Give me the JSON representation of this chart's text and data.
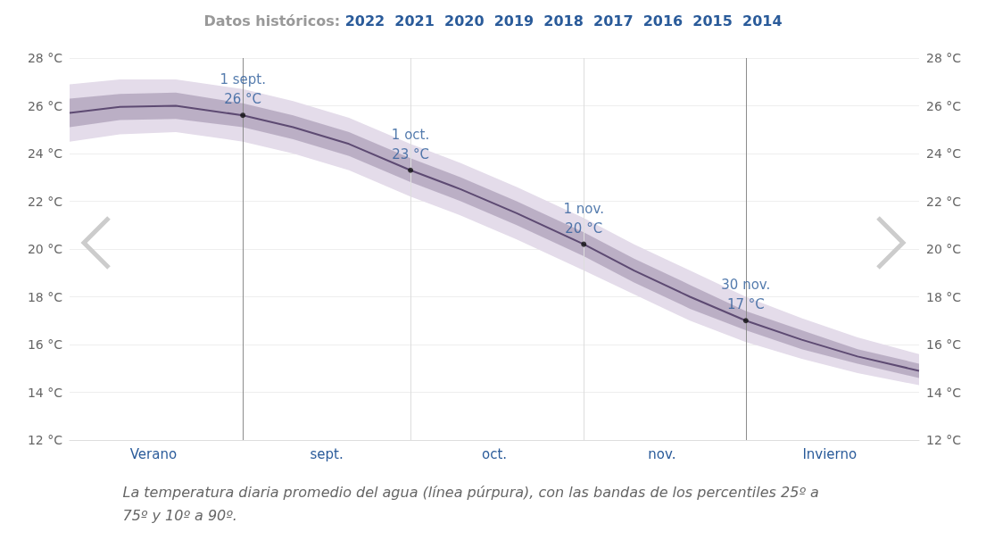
{
  "chart_data": {
    "type": "line",
    "title": "Datos históricos: 2022  2021  2020  2019  2018  2017  2016  2015  2014",
    "x": [
      "--08-01",
      "--08-10",
      "--08-20",
      "--09-01",
      "--09-10",
      "--09-20",
      "--10-01",
      "--10-10",
      "--10-20",
      "--11-01",
      "--11-10",
      "--11-20",
      "--11-30",
      "--12-10",
      "--12-20",
      "--12-31"
    ],
    "series": [
      {
        "color": "#5d4a72",
        "values": [
          25.7,
          25.95,
          26.0,
          25.6,
          25.1,
          24.4,
          23.3,
          22.5,
          21.5,
          20.2,
          19.1,
          18.0,
          17.0,
          16.2,
          15.5,
          14.9
        ],
        "lower": [
          25.1,
          25.4,
          25.45,
          25.1,
          24.6,
          23.9,
          22.8,
          22.0,
          21.0,
          19.7,
          18.6,
          17.5,
          16.6,
          15.8,
          15.2,
          14.6
        ],
        "upper": [
          26.3,
          26.5,
          26.55,
          26.1,
          25.6,
          24.9,
          23.8,
          23.0,
          22.0,
          20.7,
          19.6,
          18.5,
          17.4,
          16.6,
          15.8,
          15.2
        ]
      },
      {
        "color": "#e4dcea",
        "values": [
          null,
          null,
          null,
          null,
          null,
          null,
          null,
          null,
          null,
          null,
          null,
          null,
          null,
          null,
          null,
          null
        ],
        "lower": [
          24.5,
          24.8,
          24.9,
          24.5,
          24.0,
          23.3,
          22.2,
          21.4,
          20.4,
          19.1,
          18.1,
          17.0,
          16.1,
          15.4,
          14.8,
          14.3
        ],
        "upper": [
          26.9,
          27.1,
          27.1,
          26.7,
          26.2,
          25.5,
          24.4,
          23.6,
          22.6,
          21.3,
          20.2,
          19.1,
          18.0,
          17.1,
          16.3,
          15.6
        ]
      }
    ],
    "xlim": [
      "--08-01",
      "--12-31"
    ],
    "xticks": [
      {
        "value": "--08-16",
        "label": "Verano"
      },
      {
        "value": "--09-16",
        "label": "sept."
      },
      {
        "value": "--10-16",
        "label": "oct."
      },
      {
        "value": "--11-15",
        "label": "nov."
      },
      {
        "value": "--12-15",
        "label": "Invierno"
      }
    ],
    "ylim": [
      12,
      28
    ],
    "yticks": [
      {
        "value": 12,
        "label": "12 °C"
      },
      {
        "value": 14,
        "label": "14 °C"
      },
      {
        "value": 16,
        "label": "16 °C"
      },
      {
        "value": 18,
        "label": "18 °C"
      },
      {
        "value": 20,
        "label": "20 °C"
      },
      {
        "value": 22,
        "label": "22 °C"
      },
      {
        "value": 24,
        "label": "24 °C"
      },
      {
        "value": 26,
        "label": "26 °C"
      },
      {
        "value": 28,
        "label": "28 °C"
      }
    ],
    "y2lim": [
      12,
      28
    ],
    "y2ticks": [
      {
        "value": 12,
        "label": "12 °C"
      },
      {
        "value": 14,
        "label": "14 °C"
      },
      {
        "value": 16,
        "label": "16 °C"
      },
      {
        "value": 18,
        "label": "18 °C"
      },
      {
        "value": 20,
        "label": "20 °C"
      },
      {
        "value": 22,
        "label": "22 °C"
      },
      {
        "value": 24,
        "label": "24 °C"
      },
      {
        "value": 26,
        "label": "26 °C"
      },
      {
        "value": 28,
        "label": "28 °C"
      }
    ],
    "ref_lines": [
      {
        "axis": "x",
        "value": "--09-01",
        "color": "#8c8c8c"
      },
      {
        "axis": "x",
        "value": "--10-01",
        "color": "#dddddd"
      },
      {
        "axis": "x",
        "value": "--11-01",
        "color": "#dddddd"
      },
      {
        "axis": "x",
        "value": "--11-30",
        "color": "#8c8c8c"
      }
    ],
    "annotations": [
      {
        "text": "1 sept.\n26 °C",
        "x": "--09-01",
        "y": 25.6
      },
      {
        "text": "1 oct.\n23 °C",
        "x": "--10-01",
        "y": 23.3
      },
      {
        "text": "1 nov.\n20 °C",
        "x": "--11-01",
        "y": 20.2
      },
      {
        "text": "30 nov.\n17 °C",
        "x": "--11-30",
        "y": 17.0
      },
      "La temperatura diaria promedio del agua (línea púrpura), con las bandas de los percentiles 25º a 75º y 10º a 90º."
    ],
    "grid": "y",
    "marker": "none"
  }
}
